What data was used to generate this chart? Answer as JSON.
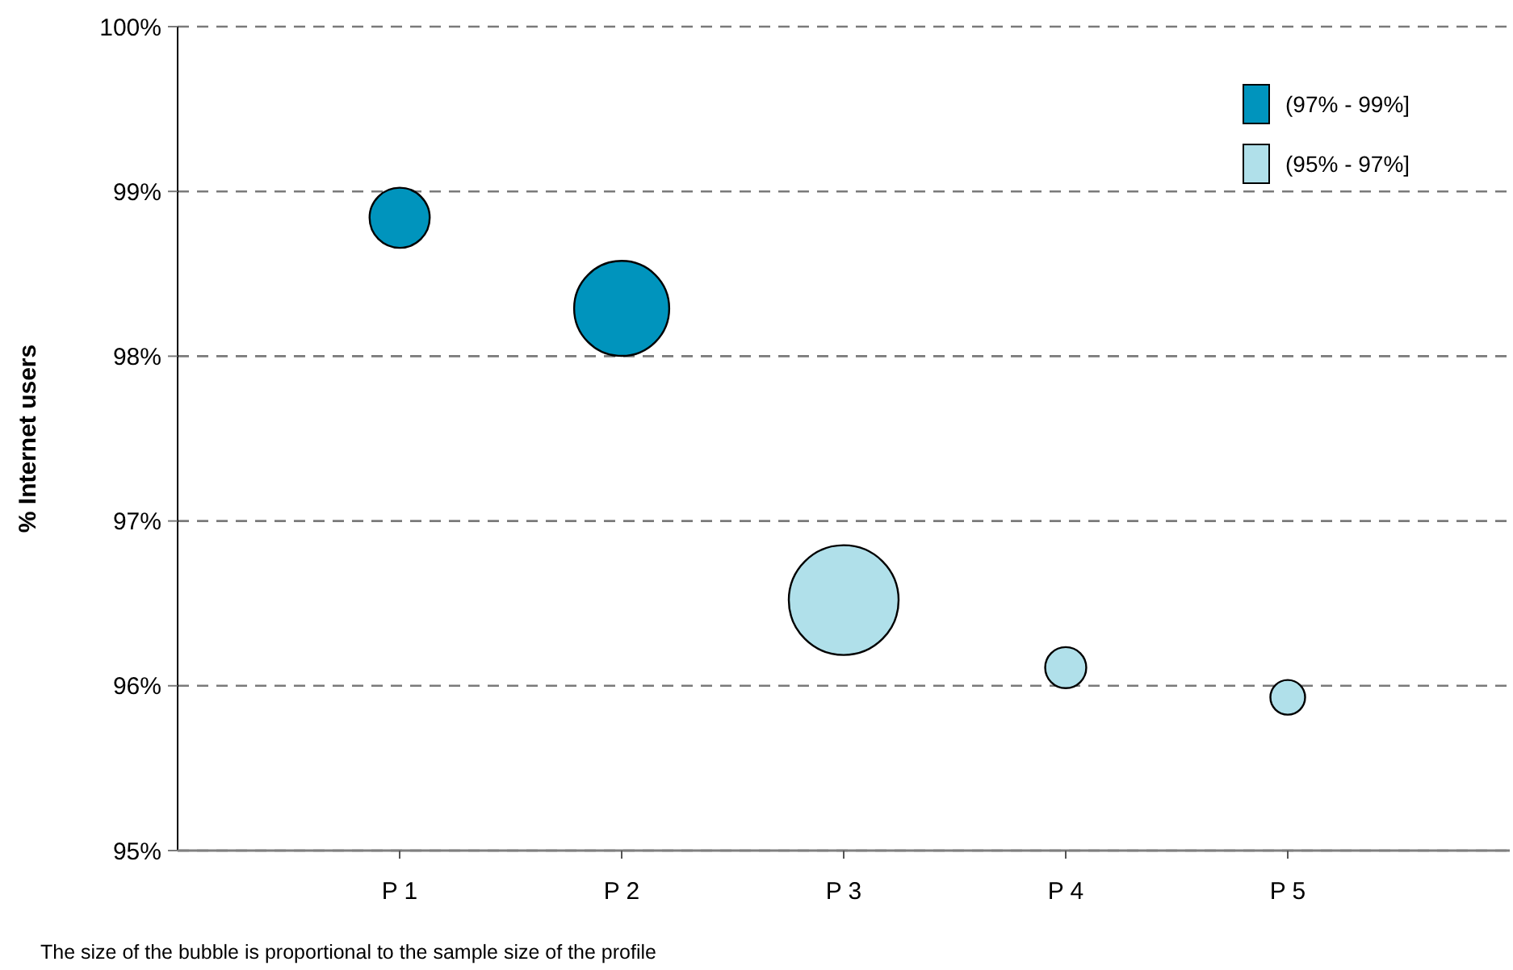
{
  "chart_data": {
    "type": "bubble",
    "ylabel": "% Internet users",
    "categories": [
      "P 1",
      "P 2",
      "P 3",
      "P 4",
      "P 5"
    ],
    "series": [
      {
        "name": "(97% - 99%]",
        "color": "#0094bd",
        "values": [
          98.84,
          98.29,
          null,
          null,
          null
        ],
        "sizes": [
          0.3,
          0.75,
          null,
          null,
          null
        ]
      },
      {
        "name": "(95% - 97%]",
        "color": "#b0e0ea",
        "values": [
          null,
          null,
          96.52,
          96.11,
          95.93
        ],
        "sizes": [
          null,
          null,
          1,
          0.14,
          0.1
        ]
      }
    ],
    "ylim": [
      95,
      100
    ],
    "yticks": [
      {
        "value": 95,
        "label": "95%"
      },
      {
        "value": 96,
        "label": "96%"
      },
      {
        "value": 97,
        "label": "97%"
      },
      {
        "value": 98,
        "label": "98%"
      },
      {
        "value": 99,
        "label": "99%"
      },
      {
        "value": 100,
        "label": "100%"
      }
    ],
    "grid": "y",
    "legend": "top right",
    "marker": "circle",
    "annotations": [
      "The size of the bubble is proportional to the sample size of the profile"
    ]
  }
}
